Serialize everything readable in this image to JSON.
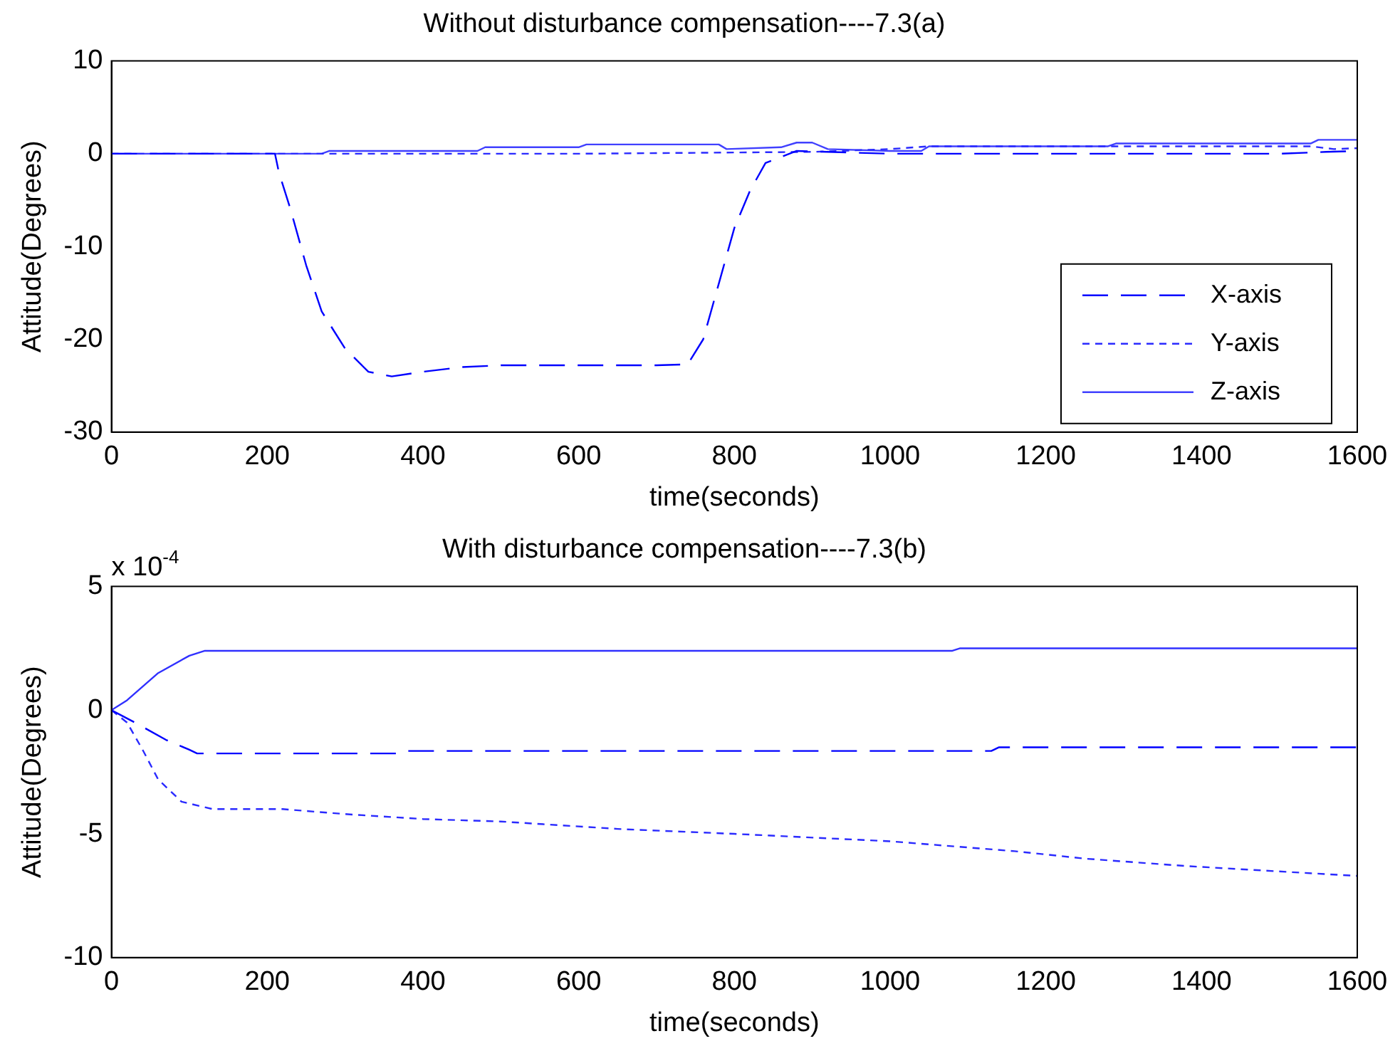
{
  "chart_data": [
    {
      "type": "line",
      "title": "Without disturbance compensation----7.3(a)",
      "xlabel": "time(seconds)",
      "ylabel": "Attitude(Degrees)",
      "xlim": [
        0,
        1600
      ],
      "xticks": [
        0,
        200,
        400,
        600,
        800,
        1000,
        1200,
        1400,
        1600
      ],
      "ylim": [
        -30,
        10
      ],
      "yticks": [
        -30,
        -20,
        -10,
        0,
        10
      ],
      "grid": false,
      "legend": "bottom right",
      "marker": "none",
      "series": [
        {
          "name": "X-axis",
          "color": "#0000ff",
          "line_style": "dashed",
          "x": [
            0,
            210,
            215,
            230,
            250,
            270,
            300,
            330,
            360,
            400,
            450,
            500,
            600,
            700,
            740,
            760,
            780,
            800,
            820,
            840,
            880,
            1000,
            1100,
            1300,
            1500,
            1560,
            1600
          ],
          "values": [
            0,
            0,
            -2,
            -6,
            -12,
            -17,
            -21,
            -23.5,
            -24,
            -23.5,
            -23,
            -22.8,
            -22.8,
            -22.8,
            -22.7,
            -20,
            -14,
            -8,
            -4,
            -1,
            0.3,
            0,
            0,
            0,
            0,
            0.2,
            0.3
          ]
        },
        {
          "name": "Y-axis",
          "color": "#2a2aff",
          "line_style": "dotted",
          "x": [
            0,
            600,
            900,
            1000,
            1050,
            1200,
            1400,
            1540,
            1570,
            1600
          ],
          "values": [
            0,
            0,
            0.2,
            0.5,
            0.8,
            0.8,
            0.8,
            0.8,
            0.5,
            0.6
          ]
        },
        {
          "name": "Z-axis",
          "color": "#4040ff",
          "line_style": "solid",
          "x": [
            0,
            270,
            280,
            470,
            480,
            600,
            610,
            780,
            790,
            860,
            880,
            900,
            920,
            1000,
            1040,
            1050,
            1280,
            1290,
            1540,
            1550,
            1600
          ],
          "values": [
            0,
            0,
            0.3,
            0.3,
            0.7,
            0.7,
            1,
            1,
            0.5,
            0.7,
            1.2,
            1.2,
            0.5,
            0.3,
            0.3,
            0.8,
            0.8,
            1.1,
            1.1,
            1.5,
            1.5
          ]
        }
      ]
    },
    {
      "type": "line",
      "title": "With disturbance compensation----7.3(b)",
      "xlabel": "time(seconds)",
      "ylabel": "Attitude(Degrees)",
      "annotations": [
        "x 10$^{-4}$"
      ],
      "xlim": [
        0,
        1600
      ],
      "xticks": [
        0,
        200,
        400,
        600,
        800,
        1000,
        1200,
        1400,
        1600
      ],
      "ylim": [
        -10,
        5
      ],
      "yticks": [
        -10,
        -5,
        0,
        5
      ],
      "grid": false,
      "marker": "none",
      "series": [
        {
          "color": "#0000ff",
          "line_style": "dashed",
          "x": [
            0,
            30,
            70,
            100,
            110,
            370,
            380,
            1130,
            1140,
            1600
          ],
          "values": [
            0,
            -0.5,
            -1.2,
            -1.6,
            -1.75,
            -1.75,
            -1.65,
            -1.65,
            -1.5,
            -1.5
          ]
        },
        {
          "color": "#2a2aff",
          "line_style": "dotted",
          "x": [
            0,
            20,
            40,
            60,
            90,
            130,
            220,
            300,
            400,
            500,
            650,
            800,
            1000,
            1160,
            1250,
            1380,
            1600
          ],
          "values": [
            0,
            -0.5,
            -1.6,
            -2.8,
            -3.7,
            -4.0,
            -4.0,
            -4.2,
            -4.4,
            -4.5,
            -4.8,
            -5.0,
            -5.3,
            -5.7,
            -6.0,
            -6.3,
            -6.7
          ]
        },
        {
          "color": "#3030ff",
          "line_style": "solid",
          "x": [
            0,
            20,
            60,
            100,
            120,
            1080,
            1090,
            1600
          ],
          "values": [
            0,
            0.4,
            1.5,
            2.2,
            2.4,
            2.4,
            2.5,
            2.5
          ]
        }
      ]
    }
  ]
}
